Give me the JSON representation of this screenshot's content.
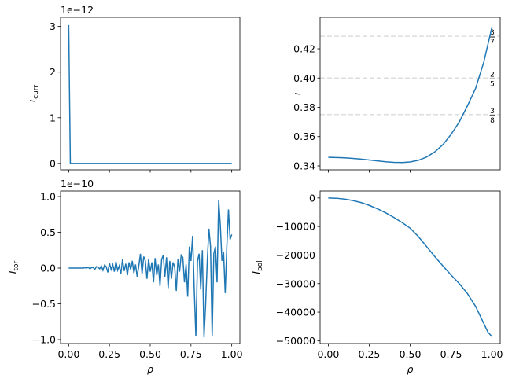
{
  "chart_data": [
    {
      "type": "line",
      "ylabel": "ι",
      "ylabel_sub": "curr",
      "offset_text": "1e−12",
      "color": "#1f77b4",
      "x": [
        0,
        0.01,
        1
      ],
      "values": [
        3.03,
        0,
        0
      ],
      "xlim": [
        -0.05,
        1.05
      ],
      "ylim": [
        -0.14,
        3.2
      ],
      "xticks": [
        0,
        0.25,
        0.5,
        0.75,
        1
      ],
      "show_xticklabels": false,
      "yticks": [
        0,
        1,
        2,
        3
      ]
    },
    {
      "type": "line",
      "ylabel": "ι",
      "color": "#1f77b4",
      "x": [
        0,
        0.05,
        0.1,
        0.15,
        0.2,
        0.25,
        0.3,
        0.35,
        0.4,
        0.45,
        0.5,
        0.55,
        0.6,
        0.65,
        0.7,
        0.75,
        0.8,
        0.85,
        0.9,
        0.95,
        1
      ],
      "values": [
        0.3458,
        0.3457,
        0.3455,
        0.3451,
        0.3446,
        0.344,
        0.3434,
        0.3428,
        0.3424,
        0.3423,
        0.3427,
        0.3438,
        0.346,
        0.3495,
        0.3545,
        0.3615,
        0.37,
        0.381,
        0.393,
        0.411,
        0.435
      ],
      "xlim": [
        -0.05,
        1.05
      ],
      "ylim": [
        0.3373,
        0.4415
      ],
      "xticks": [
        0,
        0.25,
        0.5,
        0.75,
        1
      ],
      "show_xticklabels": false,
      "yticks": [
        0.34,
        0.36,
        0.38,
        {
          "value": 0.4,
          "label": "0.40"
        },
        0.42
      ],
      "hline_color": "#dddddd",
      "annotations": [
        {
          "value": 0.428571,
          "numerator": "3",
          "denominator": "7"
        },
        {
          "value": 0.4,
          "numerator": "2",
          "denominator": "5"
        },
        {
          "value": 0.375,
          "numerator": "3",
          "denominator": "8"
        }
      ]
    },
    {
      "type": "line",
      "ylabel": "I",
      "ylabel_sub": "tor",
      "offset_text": "1e−10",
      "xlabel": "ρ",
      "color": "#1f77b4",
      "x": [
        0,
        0.01,
        0.02,
        0.03,
        0.04,
        0.05,
        0.06,
        0.07,
        0.08,
        0.09,
        0.1,
        0.11,
        0.12,
        0.13,
        0.14,
        0.15,
        0.16,
        0.17,
        0.18,
        0.19,
        0.2,
        0.21,
        0.22,
        0.23,
        0.24,
        0.25,
        0.26,
        0.27,
        0.28,
        0.29,
        0.3,
        0.31,
        0.32,
        0.33,
        0.34,
        0.35,
        0.36,
        0.37,
        0.38,
        0.39,
        0.4,
        0.41,
        0.42,
        0.43,
        0.44,
        0.45,
        0.46,
        0.47,
        0.48,
        0.49,
        0.5,
        0.51,
        0.52,
        0.53,
        0.54,
        0.55,
        0.56,
        0.57,
        0.58,
        0.59,
        0.6,
        0.61,
        0.62,
        0.63,
        0.64,
        0.65,
        0.66,
        0.67,
        0.68,
        0.69,
        0.7,
        0.71,
        0.72,
        0.73,
        0.74,
        0.75,
        0.76,
        0.77,
        0.78,
        0.79,
        0.8,
        0.81,
        0.82,
        0.83,
        0.84,
        0.85,
        0.86,
        0.87,
        0.88,
        0.89,
        0.9,
        0.91,
        0.92,
        0.93,
        0.94,
        0.95,
        0.96,
        0.97,
        0.98,
        0.99,
        1
      ],
      "values": [
        0,
        0,
        0,
        0,
        0,
        0,
        0,
        0,
        0,
        0,
        0.005,
        0,
        0.01,
        -0.01,
        0.005,
        0.01,
        -0.02,
        0.02,
        0.01,
        -0.01,
        0.03,
        -0.03,
        0.04,
        0.02,
        -0.06,
        0.07,
        -0.02,
        0.05,
        -0.05,
        0.09,
        -0.03,
        0.03,
        -0.08,
        0.12,
        -0.04,
        0.06,
        -0.1,
        0.08,
        -0.02,
        0.1,
        -0.07,
        0.05,
        -0.12,
        0.03,
        0.2,
        -0.08,
        0.16,
        0.1,
        -0.15,
        0.12,
        -0.05,
        0.08,
        -0.2,
        0.14,
        -0.1,
        0.05,
        -0.25,
        0.12,
        0.18,
        -0.12,
        0.15,
        -0.28,
        0.1,
        -0.15,
        0.08,
        0.02,
        -0.32,
        0.12,
        -0.05,
        0.18,
        0.15,
        -0.2,
        0.05,
        -0.4,
        0.3,
        0.1,
        0.45,
        -0.3,
        -0.95,
        0.1,
        0.2,
        -0.3,
        0.25,
        -0.97,
        -0.5,
        0.1,
        0.55,
        0.3,
        -0.95,
        0.2,
        0.3,
        -0.2,
        0.95,
        0.6,
        0.1,
        0.22,
        -0.35,
        0.3,
        0.82,
        0.4,
        0.47
      ],
      "xlim": [
        -0.05,
        1.05
      ],
      "ylim": [
        -1.055,
        1.077
      ],
      "xticks": [
        {
          "value": 0,
          "label": "0.00"
        },
        {
          "value": 0.25,
          "label": "0.25"
        },
        {
          "value": 0.5,
          "label": "0.50"
        },
        {
          "value": 0.75,
          "label": "0.75"
        },
        {
          "value": 1,
          "label": "1.00"
        }
      ],
      "show_xticklabels": true,
      "yticks": [
        {
          "value": -1,
          "label": "−1.0"
        },
        {
          "value": -0.5,
          "label": "−0.5"
        },
        {
          "value": 0,
          "label": "0.0"
        },
        {
          "value": 0.5,
          "label": "0.5"
        },
        {
          "value": 1,
          "label": "1.0"
        }
      ]
    },
    {
      "type": "line",
      "ylabel": "I",
      "ylabel_sub": "pol",
      "xlabel": "ρ",
      "color": "#1f77b4",
      "x": [
        0,
        0.05,
        0.1,
        0.15,
        0.2,
        0.25,
        0.3,
        0.35,
        0.4,
        0.45,
        0.5,
        0.55,
        0.6,
        0.65,
        0.7,
        0.75,
        0.8,
        0.85,
        0.9,
        0.95,
        0.975,
        1
      ],
      "values": [
        0,
        -100,
        -400,
        -900,
        -1600,
        -2600,
        -3800,
        -5200,
        -6800,
        -8600,
        -10600,
        -13500,
        -17000,
        -20500,
        -23800,
        -27000,
        -30000,
        -33500,
        -38000,
        -44000,
        -47000,
        -48600
      ],
      "xlim": [
        -0.05,
        1.05
      ],
      "ylim": [
        -51000,
        2430
      ],
      "xticks": [
        {
          "value": 0,
          "label": "0.00"
        },
        {
          "value": 0.25,
          "label": "0.25"
        },
        {
          "value": 0.5,
          "label": "0.50"
        },
        {
          "value": 0.75,
          "label": "0.75"
        },
        {
          "value": 1,
          "label": "1.00"
        }
      ],
      "show_xticklabels": true,
      "yticks": [
        {
          "value": -50000,
          "label": "−50000"
        },
        {
          "value": -40000,
          "label": "−40000"
        },
        {
          "value": -30000,
          "label": "−30000"
        },
        {
          "value": -20000,
          "label": "−20000"
        },
        {
          "value": -10000,
          "label": "−10000"
        },
        0
      ]
    }
  ]
}
